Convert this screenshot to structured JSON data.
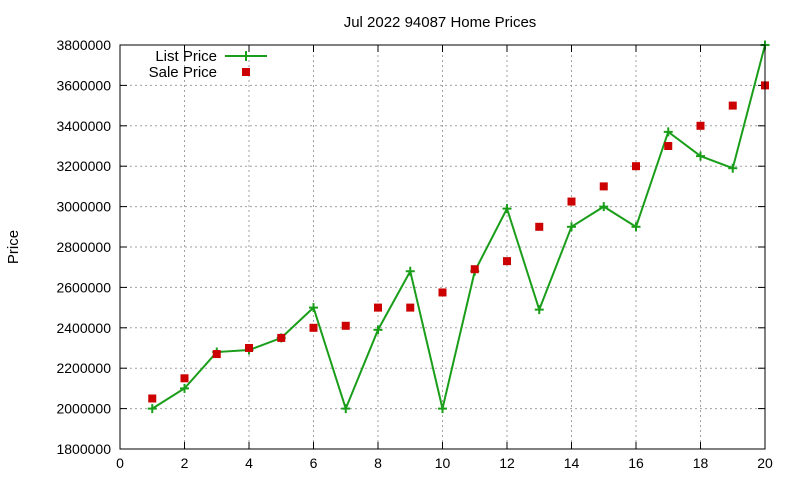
{
  "chart_data": {
    "type": "line",
    "title": "Jul 2022 94087 Home Prices",
    "xlabel": "",
    "ylabel": "Price",
    "xlim": [
      0,
      20
    ],
    "ylim": [
      1800000,
      3800000
    ],
    "x_ticks": [
      0,
      2,
      4,
      6,
      8,
      10,
      12,
      14,
      16,
      18,
      20
    ],
    "y_ticks": [
      1800000,
      2000000,
      2200000,
      2400000,
      2600000,
      2800000,
      3000000,
      3200000,
      3400000,
      3600000,
      3800000
    ],
    "grid": true,
    "legend_position": "top-left",
    "series": [
      {
        "name": "List Price",
        "style": "lines+plus-markers",
        "color": "#1a9e1a",
        "x": [
          1,
          2,
          3,
          4,
          5,
          6,
          7,
          8,
          9,
          10,
          11,
          12,
          13,
          14,
          15,
          16,
          17,
          18,
          19,
          20
        ],
        "y": [
          2000000,
          2100000,
          2280000,
          2290000,
          2350000,
          2500000,
          2000000,
          2390000,
          2680000,
          2000000,
          2680000,
          2990000,
          2490000,
          2900000,
          3000000,
          2900000,
          3370000,
          3250000,
          3190000,
          3800000
        ]
      },
      {
        "name": "Sale Price",
        "style": "square-markers",
        "color": "#cc0000",
        "x": [
          1,
          2,
          3,
          4,
          5,
          6,
          7,
          8,
          9,
          10,
          11,
          12,
          13,
          14,
          15,
          16,
          17,
          18,
          19,
          20
        ],
        "y": [
          2050000,
          2150000,
          2270000,
          2300000,
          2350000,
          2400000,
          2410000,
          2500000,
          2500000,
          2575000,
          2690000,
          2730000,
          2900000,
          3025000,
          3100000,
          3200000,
          3300000,
          3400000,
          3500000,
          3600000
        ]
      }
    ]
  }
}
